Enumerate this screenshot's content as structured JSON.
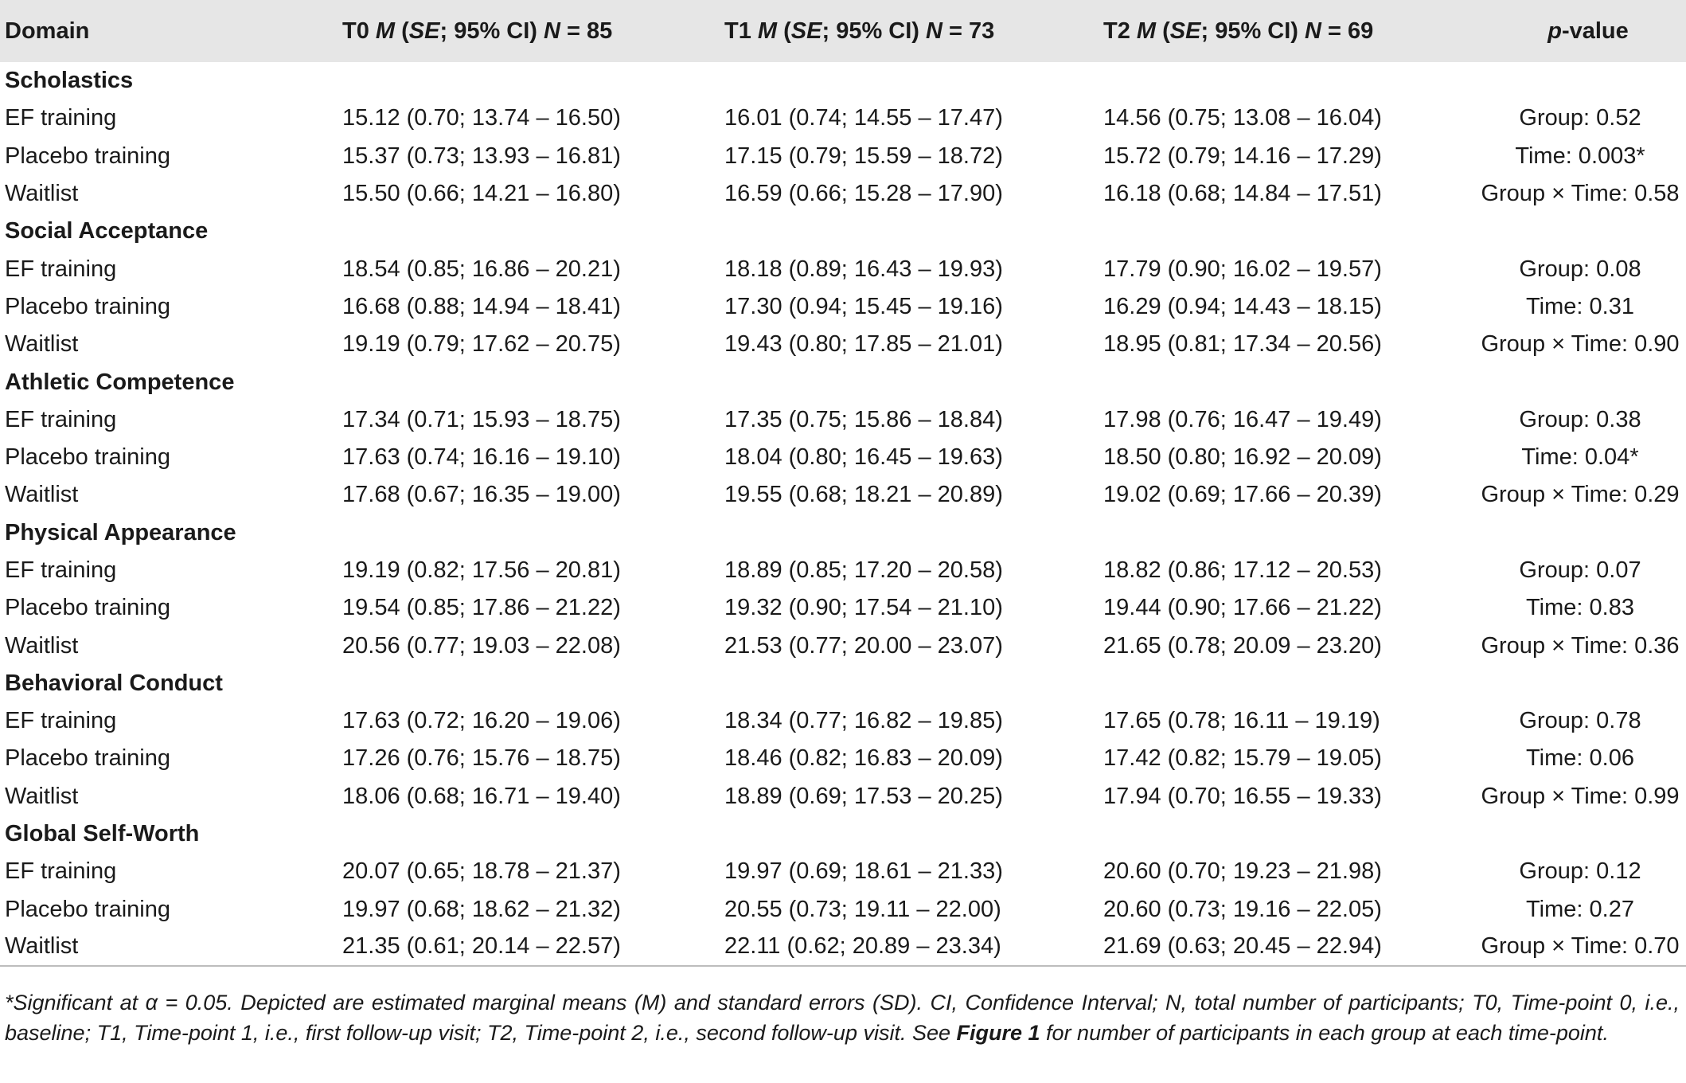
{
  "table": {
    "header": {
      "domain": "Domain",
      "t0": {
        "prefix": "T0 ",
        "m": "M",
        "open": " (",
        "se": "SE",
        "ci": "; 95% CI) ",
        "n": "N",
        "count": " = 85"
      },
      "t1": {
        "prefix": "T1 ",
        "m": "M",
        "open": " (",
        "se": "SE",
        "ci": "; 95% CI) ",
        "n": "N",
        "count": " = 73"
      },
      "t2": {
        "prefix": "T2 ",
        "m": "M",
        "open": " (",
        "se": "SE",
        "ci": "; 95% CI) ",
        "n": "N",
        "count": " = 69"
      },
      "p": {
        "italic": "p",
        "rest": "-value"
      }
    },
    "sections": [
      {
        "domain": "Scholastics",
        "rows": [
          {
            "label": "EF training",
            "t0": "15.12 (0.70; 13.74 – 16.50)",
            "t1": "16.01 (0.74; 14.55 – 17.47)",
            "t2": "14.56 (0.75; 13.08 – 16.04)",
            "p": "Group: 0.52"
          },
          {
            "label": "Placebo training",
            "t0": "15.37 (0.73; 13.93 – 16.81)",
            "t1": "17.15 (0.79; 15.59 – 18.72)",
            "t2": "15.72 (0.79; 14.16 – 17.29)",
            "p": "Time: 0.003*"
          },
          {
            "label": "Waitlist",
            "t0": "15.50 (0.66; 14.21 – 16.80)",
            "t1": "16.59 (0.66; 15.28 – 17.90)",
            "t2": "16.18 (0.68; 14.84 – 17.51)",
            "p": "Group × Time: 0.58"
          }
        ]
      },
      {
        "domain": "Social Acceptance",
        "rows": [
          {
            "label": "EF training",
            "t0": "18.54 (0.85; 16.86 – 20.21)",
            "t1": "18.18 (0.89; 16.43 – 19.93)",
            "t2": "17.79 (0.90; 16.02 – 19.57)",
            "p": "Group: 0.08"
          },
          {
            "label": "Placebo training",
            "t0": "16.68 (0.88; 14.94 – 18.41)",
            "t1": "17.30 (0.94; 15.45 – 19.16)",
            "t2": "16.29 (0.94; 14.43 – 18.15)",
            "p": "Time: 0.31"
          },
          {
            "label": "Waitlist",
            "t0": "19.19 (0.79; 17.62 – 20.75)",
            "t1": "19.43 (0.80; 17.85 – 21.01)",
            "t2": "18.95 (0.81; 17.34 – 20.56)",
            "p": "Group × Time: 0.90"
          }
        ]
      },
      {
        "domain": "Athletic Competence",
        "rows": [
          {
            "label": "EF training",
            "t0": "17.34 (0.71; 15.93 – 18.75)",
            "t1": "17.35 (0.75; 15.86 – 18.84)",
            "t2": "17.98 (0.76; 16.47 – 19.49)",
            "p": "Group: 0.38"
          },
          {
            "label": "Placebo training",
            "t0": "17.63 (0.74; 16.16 – 19.10)",
            "t1": "18.04 (0.80; 16.45 – 19.63)",
            "t2": "18.50 (0.80; 16.92 – 20.09)",
            "p": "Time: 0.04*"
          },
          {
            "label": "Waitlist",
            "t0": "17.68 (0.67; 16.35 – 19.00)",
            "t1": "19.55 (0.68; 18.21 – 20.89)",
            "t2": "19.02 (0.69; 17.66 – 20.39)",
            "p": "Group × Time: 0.29"
          }
        ]
      },
      {
        "domain": "Physical Appearance",
        "rows": [
          {
            "label": "EF training",
            "t0": "19.19 (0.82; 17.56 – 20.81)",
            "t1": "18.89 (0.85; 17.20 – 20.58)",
            "t2": "18.82 (0.86; 17.12 – 20.53)",
            "p": "Group: 0.07"
          },
          {
            "label": "Placebo training",
            "t0": "19.54 (0.85; 17.86 – 21.22)",
            "t1": "19.32 (0.90; 17.54 – 21.10)",
            "t2": "19.44 (0.90; 17.66 – 21.22)",
            "p": "Time: 0.83"
          },
          {
            "label": "Waitlist",
            "t0": "20.56 (0.77; 19.03 – 22.08)",
            "t1": "21.53 (0.77; 20.00 – 23.07)",
            "t2": "21.65 (0.78; 20.09 – 23.20)",
            "p": "Group × Time: 0.36"
          }
        ]
      },
      {
        "domain": "Behavioral Conduct",
        "rows": [
          {
            "label": "EF training",
            "t0": "17.63 (0.72; 16.20 – 19.06)",
            "t1": "18.34 (0.77; 16.82 – 19.85)",
            "t2": "17.65 (0.78; 16.11 – 19.19)",
            "p": "Group: 0.78"
          },
          {
            "label": "Placebo training",
            "t0": "17.26 (0.76; 15.76 – 18.75)",
            "t1": "18.46 (0.82; 16.83 – 20.09)",
            "t2": "17.42 (0.82; 15.79 – 19.05)",
            "p": "Time: 0.06"
          },
          {
            "label": "Waitlist",
            "t0": "18.06 (0.68; 16.71 – 19.40)",
            "t1": "18.89 (0.69; 17.53 – 20.25)",
            "t2": "17.94 (0.70; 16.55 – 19.33)",
            "p": "Group × Time: 0.99"
          }
        ]
      },
      {
        "domain": "Global Self-Worth",
        "rows": [
          {
            "label": "EF training",
            "t0": "20.07 (0.65; 18.78 – 21.37)",
            "t1": "19.97 (0.69; 18.61 – 21.33)",
            "t2": "20.60 (0.70; 19.23 – 21.98)",
            "p": "Group: 0.12"
          },
          {
            "label": "Placebo training",
            "t0": "19.97 (0.68; 18.62 – 21.32)",
            "t1": "20.55 (0.73; 19.11 – 22.00)",
            "t2": "20.60 (0.73; 19.16 – 22.05)",
            "p": "Time: 0.27"
          },
          {
            "label": "Waitlist",
            "t0": "21.35 (0.61; 20.14 – 22.57)",
            "t1": "22.11 (0.62; 20.89 – 23.34)",
            "t2": "21.69 (0.63; 20.45 – 22.94)",
            "p": "Group × Time: 0.70"
          }
        ]
      }
    ]
  },
  "footnote": {
    "main": "*Significant at α = 0.05. Depicted are estimated marginal means (M) and standard errors (SD). CI, Confidence Interval; N, total number of participants; T0, Time-point 0, i.e., baseline; T1, Time-point 1, i.e., first follow-up visit; T2, Time-point 2, i.e., second follow-up visit. See ",
    "figure_ref": "Figure 1",
    "tail": " for number of participants in each group at each time-point."
  }
}
